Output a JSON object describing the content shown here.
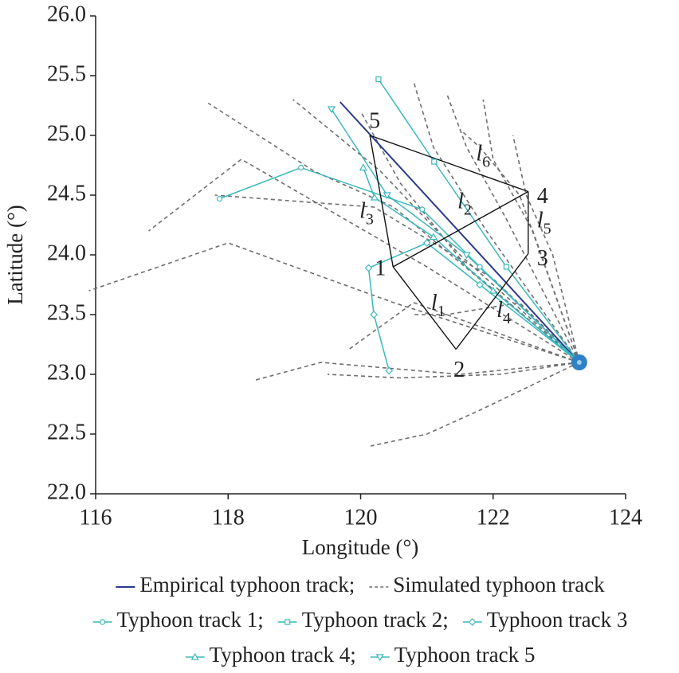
{
  "chart_data": {
    "type": "line",
    "x_label": "Longitude (°)",
    "y_label": "Latitude (°)",
    "xlim": [
      116,
      124
    ],
    "xticks": [
      116,
      118,
      120,
      122,
      124
    ],
    "ylim": [
      22,
      26
    ],
    "yticks": [
      {
        "value": 22,
        "label": "22.0"
      },
      {
        "value": 22.5,
        "label": "22.5"
      },
      {
        "value": 23,
        "label": "23.0"
      },
      {
        "value": 23.5,
        "label": "23.5"
      },
      {
        "value": 24,
        "label": "24.0"
      },
      {
        "value": 24.5,
        "label": "24.5"
      },
      {
        "value": 25,
        "label": "25.0"
      },
      {
        "value": 25.5,
        "label": "25.5"
      },
      {
        "value": 26,
        "label": "26.0"
      }
    ],
    "series": [
      {
        "name": "Empirical typhoon track;",
        "color": "#2b3a8c",
        "x": [
          123.3,
          119.69
        ],
        "y": [
          23.1,
          25.28
        ]
      },
      {
        "name": "Simulated typhoon track",
        "color": "#6e6e6e",
        "dashed": true,
        "tracks": [
          {
            "x": [
              123.3,
              120.5,
              118,
              115.9
            ],
            "y": [
              23.1,
              23.6,
              24.1,
              23.7
            ]
          },
          {
            "x": [
              123.3,
              121,
              118.2,
              116.8
            ],
            "y": [
              23.1,
              23.9,
              24.8,
              24.2
            ]
          },
          {
            "x": [
              123.3,
              120.5,
              119.3,
              117.7
            ],
            "y": [
              23.1,
              24.4,
              24.7,
              25.27
            ]
          },
          {
            "x": [
              123.3,
              121.5,
              119.4,
              118.4
            ],
            "y": [
              23.1,
              23.0,
              23.1,
              22.95
            ]
          },
          {
            "x": [
              123.3,
              121.8,
              121.0,
              120.15
            ],
            "y": [
              23.1,
              22.7,
              22.5,
              22.4
            ]
          },
          {
            "x": [
              123.3,
              121.5,
              120.3,
              118.98
            ],
            "y": [
              23.1,
              24.0,
              24.7,
              25.3
            ]
          },
          {
            "x": [
              123.3,
              121.9,
              121.1,
              120.8
            ],
            "y": [
              23.1,
              24.2,
              24.9,
              25.45
            ]
          },
          {
            "x": [
              123.3,
              122.2,
              121.6,
              121.3
            ],
            "y": [
              23.1,
              24.3,
              24.9,
              25.35
            ]
          },
          {
            "x": [
              123.3,
              122.6,
              122.0,
              121.85
            ],
            "y": [
              23.1,
              24.2,
              24.8,
              25.3
            ]
          },
          {
            "x": [
              123.3,
              121.8,
              120.8,
              119.8
            ],
            "y": [
              23.1,
              23.4,
              23.6,
              23.2
            ]
          },
          {
            "x": [
              123.3,
              122.1,
              120.6,
              119.5
            ],
            "y": [
              23.1,
              23.0,
              22.97,
              23.0
            ]
          },
          {
            "x": [
              123.3,
              122.0,
              120.2,
              117.8
            ],
            "y": [
              23.1,
              23.8,
              24.4,
              24.5
            ]
          },
          {
            "x": [
              123.3,
              122.4,
              121.8,
              121.5
            ],
            "y": [
              23.1,
              24.5,
              24.9,
              25.05
            ]
          },
          {
            "x": [
              123.3,
              121.6,
              120.6,
              120.0
            ],
            "y": [
              23.1,
              23.9,
              24.6,
              25.2
            ]
          },
          {
            "x": [
              123.3,
              122.4,
              121.3,
              120.8
            ],
            "y": [
              23.1,
              23.6,
              23.5,
              23.5
            ]
          },
          {
            "x": [
              123.3,
              122.9,
              122.5,
              122.3
            ],
            "y": [
              23.1,
              24.0,
              24.5,
              25.0
            ]
          }
        ]
      },
      {
        "name": "Typhoon track 1;",
        "color": "#3bb8bc",
        "marker": "circle",
        "x": [
          123.3,
          121.8,
          120.93,
          119.1,
          117.87
        ],
        "y": [
          23.1,
          23.9,
          24.38,
          24.73,
          24.47
        ]
      },
      {
        "name": "Typhoon track 2;",
        "color": "#3bb8bc",
        "marker": "square",
        "x": [
          123.3,
          122.2,
          121.11,
          120.27
        ],
        "y": [
          23.1,
          23.9,
          24.78,
          25.47
        ]
      },
      {
        "name": "Typhoon track 3",
        "color": "#3bb8bc",
        "marker": "diamond",
        "x": [
          123.3,
          121.8,
          121.0,
          120.12,
          120.2,
          120.43
        ],
        "y": [
          23.1,
          23.75,
          24.1,
          23.89,
          23.5,
          23.03
        ]
      },
      {
        "name": "Typhoon track 4;",
        "color": "#3bb8bc",
        "marker": "triangle-up",
        "x": [
          123.3,
          122.0,
          121.1,
          120.21,
          120.04
        ],
        "y": [
          23.1,
          23.7,
          24.15,
          24.48,
          24.73
        ]
      },
      {
        "name": "Typhoon track 5",
        "color": "#3bb8bc",
        "marker": "triangle-down",
        "x": [
          123.3,
          121.6,
          120.4,
          119.56
        ],
        "y": [
          23.1,
          24.0,
          24.5,
          25.22
        ]
      }
    ],
    "polygon": {
      "color": "#111111",
      "points": [
        {
          "label": "1",
          "x": 120.49,
          "y": 23.9,
          "side": "left"
        },
        {
          "label": "2",
          "x": 121.44,
          "y": 23.21,
          "side": "below"
        },
        {
          "label": "3",
          "x": 122.53,
          "y": 24.01,
          "side": "right"
        },
        {
          "label": "4",
          "x": 122.53,
          "y": 24.53,
          "side": "right"
        },
        {
          "label": "5",
          "x": 120.14,
          "y": 25.0,
          "side": "above"
        }
      ],
      "edges": [
        [
          4,
          3
        ],
        [
          3,
          2
        ],
        [
          2,
          1
        ],
        [
          1,
          0
        ],
        [
          0,
          4
        ],
        [
          0,
          3
        ]
      ],
      "edge_labels": [
        {
          "text": "l",
          "sub": "1",
          "x": 121.17,
          "y": 23.58
        },
        {
          "text": "l",
          "sub": "2",
          "x": 121.57,
          "y": 24.43
        },
        {
          "text": "l",
          "sub": "3",
          "x": 120.09,
          "y": 24.35
        },
        {
          "text": "l",
          "sub": "4",
          "x": 122.16,
          "y": 23.52
        },
        {
          "text": "l",
          "sub": "5",
          "x": 122.77,
          "y": 24.27
        },
        {
          "text": "l",
          "sub": "6",
          "x": 121.85,
          "y": 24.83
        }
      ]
    }
  }
}
